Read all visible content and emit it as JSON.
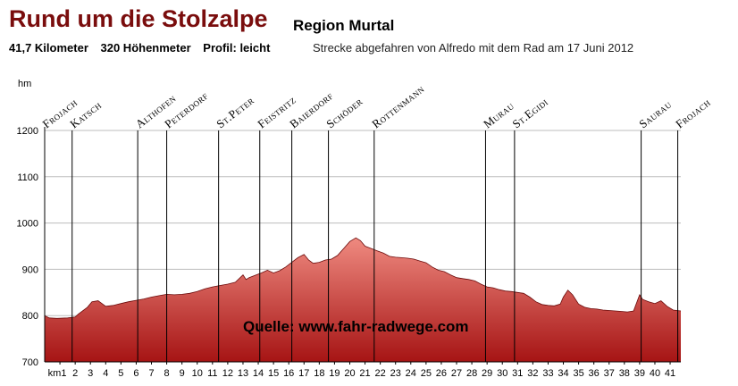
{
  "header": {
    "title": "Rund um die Stolzalpe",
    "subtitle": "Region Murtal",
    "distance": "41,7 Kilometer",
    "elevation_gain": "320 Höhenmeter",
    "profile": "Profil: leicht",
    "ride_note": "Strecke abgefahren von Alfredo mit dem Rad am 17 Juni 2012"
  },
  "source": "Quelle: www.fahr-radwege.com",
  "colors": {
    "title": "#7a0d0d",
    "fill_top": "#ef8a80",
    "fill_bottom": "#a61414",
    "outline": "#6b0b0b",
    "grid": "#bdbdbd"
  },
  "chart_data": {
    "type": "area",
    "ylabel": "hm",
    "ylim": [
      700,
      1200
    ],
    "yticks": [
      "700",
      "800",
      "900",
      "1000",
      "1100",
      "1200"
    ],
    "xlim": [
      0,
      41.7
    ],
    "xticks": [
      "km1",
      "2",
      "3",
      "4",
      "5",
      "6",
      "7",
      "8",
      "9",
      "10",
      "11",
      "12",
      "13",
      "14",
      "15",
      "16",
      "17",
      "18",
      "19",
      "20",
      "21",
      "22",
      "23",
      "24",
      "25",
      "26",
      "27",
      "28",
      "29",
      "30",
      "31",
      "32",
      "33",
      "34",
      "35",
      "36",
      "37",
      "38",
      "39",
      "40",
      "41"
    ],
    "grid": "horizontal",
    "profile": {
      "x": [
        0,
        0.3,
        0.8,
        1.5,
        2.0,
        2.2,
        2.8,
        3.1,
        3.5,
        4.0,
        4.5,
        5.0,
        5.5,
        6.0,
        6.5,
        7.0,
        7.5,
        8.0,
        8.5,
        9.0,
        9.5,
        10.0,
        10.5,
        11.0,
        11.5,
        12.0,
        12.5,
        13.0,
        13.2,
        13.4,
        13.8,
        14.2,
        14.6,
        15.0,
        15.4,
        15.8,
        16.2,
        16.6,
        17.0,
        17.3,
        17.6,
        18.0,
        18.4,
        18.8,
        19.2,
        19.6,
        20.0,
        20.4,
        20.7,
        21.0,
        21.4,
        21.8,
        22.2,
        22.6,
        23.0,
        23.4,
        23.8,
        24.2,
        24.6,
        25.0,
        25.4,
        25.8,
        26.2,
        26.6,
        27.0,
        27.4,
        27.8,
        28.2,
        28.6,
        29.0,
        29.4,
        29.8,
        30.2,
        30.6,
        31.0,
        31.4,
        31.8,
        32.2,
        32.6,
        33.0,
        33.4,
        33.8,
        34.0,
        34.3,
        34.6,
        35.0,
        35.4,
        35.8,
        36.2,
        36.6,
        37.0,
        37.4,
        37.8,
        38.2,
        38.6,
        39.0,
        39.2,
        39.6,
        40.0,
        40.4,
        40.8,
        41.2,
        41.7
      ],
      "y": [
        800,
        795,
        794,
        795,
        797,
        803,
        818,
        830,
        832,
        820,
        822,
        826,
        830,
        833,
        836,
        840,
        843,
        846,
        845,
        846,
        848,
        852,
        858,
        862,
        865,
        868,
        872,
        888,
        878,
        882,
        887,
        892,
        898,
        892,
        897,
        905,
        915,
        925,
        932,
        920,
        913,
        915,
        920,
        922,
        930,
        945,
        960,
        968,
        962,
        950,
        945,
        940,
        935,
        928,
        926,
        925,
        924,
        922,
        918,
        914,
        905,
        898,
        895,
        888,
        882,
        880,
        878,
        875,
        868,
        862,
        860,
        856,
        853,
        852,
        850,
        848,
        840,
        830,
        824,
        822,
        821,
        825,
        840,
        855,
        845,
        825,
        818,
        815,
        814,
        812,
        811,
        810,
        809,
        808,
        810,
        845,
        835,
        830,
        826,
        832,
        820,
        812,
        810
      ]
    },
    "places": [
      {
        "name": "Frojach",
        "km": 0
      },
      {
        "name": "Katsch",
        "km": 1.8
      },
      {
        "name": "Althofen",
        "km": 6.1
      },
      {
        "name": "Peterdorf",
        "km": 8.0
      },
      {
        "name": "St.Peter",
        "km": 11.4
      },
      {
        "name": "Feistritz",
        "km": 14.1
      },
      {
        "name": "Baierdorf",
        "km": 16.2
      },
      {
        "name": "Schöder",
        "km": 18.6
      },
      {
        "name": "Rottenmann",
        "km": 21.6
      },
      {
        "name": "Murau",
        "km": 28.9
      },
      {
        "name": "St.Egidi",
        "km": 30.8
      },
      {
        "name": "Saurau",
        "km": 39.1
      },
      {
        "name": "Frojach",
        "km": 41.5
      }
    ]
  }
}
